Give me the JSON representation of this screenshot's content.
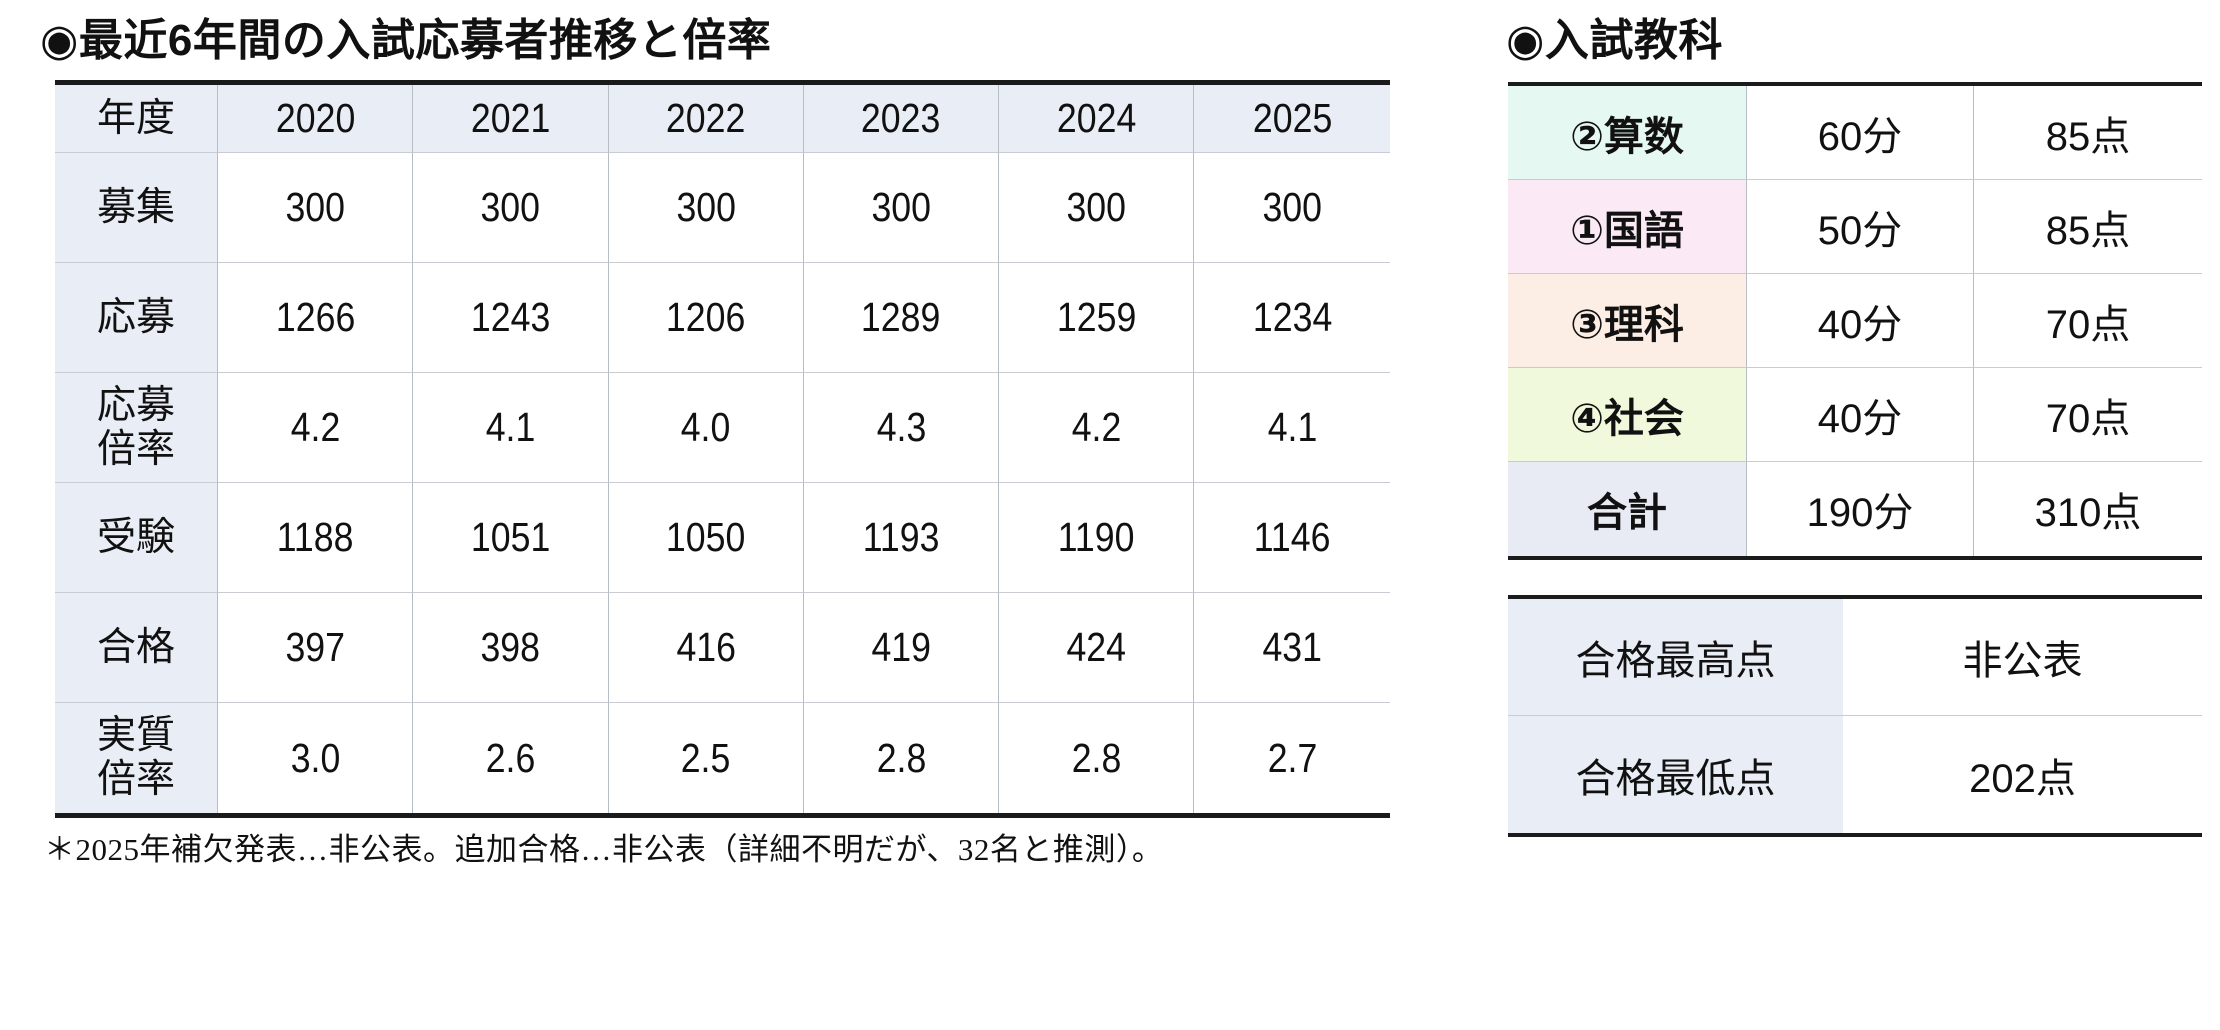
{
  "left": {
    "title": "◉最近6年間の入試応募者推移と倍率",
    "table": {
      "header_label": "年度",
      "years": [
        "2020",
        "2021",
        "2022",
        "2023",
        "2024",
        "2025"
      ],
      "rows": [
        {
          "label": "募集",
          "values": [
            "300",
            "300",
            "300",
            "300",
            "300",
            "300"
          ]
        },
        {
          "label": "応募",
          "values": [
            "1266",
            "1243",
            "1206",
            "1289",
            "1259",
            "1234"
          ]
        },
        {
          "label": "応募\n倍率",
          "values": [
            "4.2",
            "4.1",
            "4.0",
            "4.3",
            "4.2",
            "4.1"
          ]
        },
        {
          "label": "受験",
          "values": [
            "1188",
            "1051",
            "1050",
            "1193",
            "1190",
            "1146"
          ]
        },
        {
          "label": "合格",
          "values": [
            "397",
            "398",
            "416",
            "419",
            "424",
            "431"
          ]
        },
        {
          "label": "実質\n倍率",
          "values": [
            "3.0",
            "2.6",
            "2.5",
            "2.8",
            "2.8",
            "2.7"
          ]
        }
      ]
    },
    "footnote": "＊2025年補欠発表…非公表。追加合格…非公表（詳細不明だが、32名と推測）。"
  },
  "right": {
    "title": "◉入試教科",
    "subjects": {
      "rows": [
        {
          "label": "②算数",
          "time": "60分",
          "score": "85点"
        },
        {
          "label": "①国語",
          "time": "50分",
          "score": "85点"
        },
        {
          "label": "③理科",
          "time": "40分",
          "score": "70点"
        },
        {
          "label": "④社会",
          "time": "40分",
          "score": "70点"
        },
        {
          "label": "合計",
          "time": "190分",
          "score": "310点"
        }
      ]
    },
    "results": {
      "rows": [
        {
          "label": "合格最高点",
          "value": "非公表"
        },
        {
          "label": "合格最低点",
          "value": "202点"
        }
      ]
    }
  },
  "colors": {
    "border-dark": "#1b1b1b",
    "line-h": "#c8ccd2",
    "line-v": "#b7bdc5",
    "header-bg": "#e9edf5",
    "math-bg": "#e5f8f2",
    "japanese-bg": "#fbeaf6",
    "science-bg": "#fdeee5",
    "social-bg": "#f1f9dd",
    "total-bg": "#e8ebf3"
  }
}
